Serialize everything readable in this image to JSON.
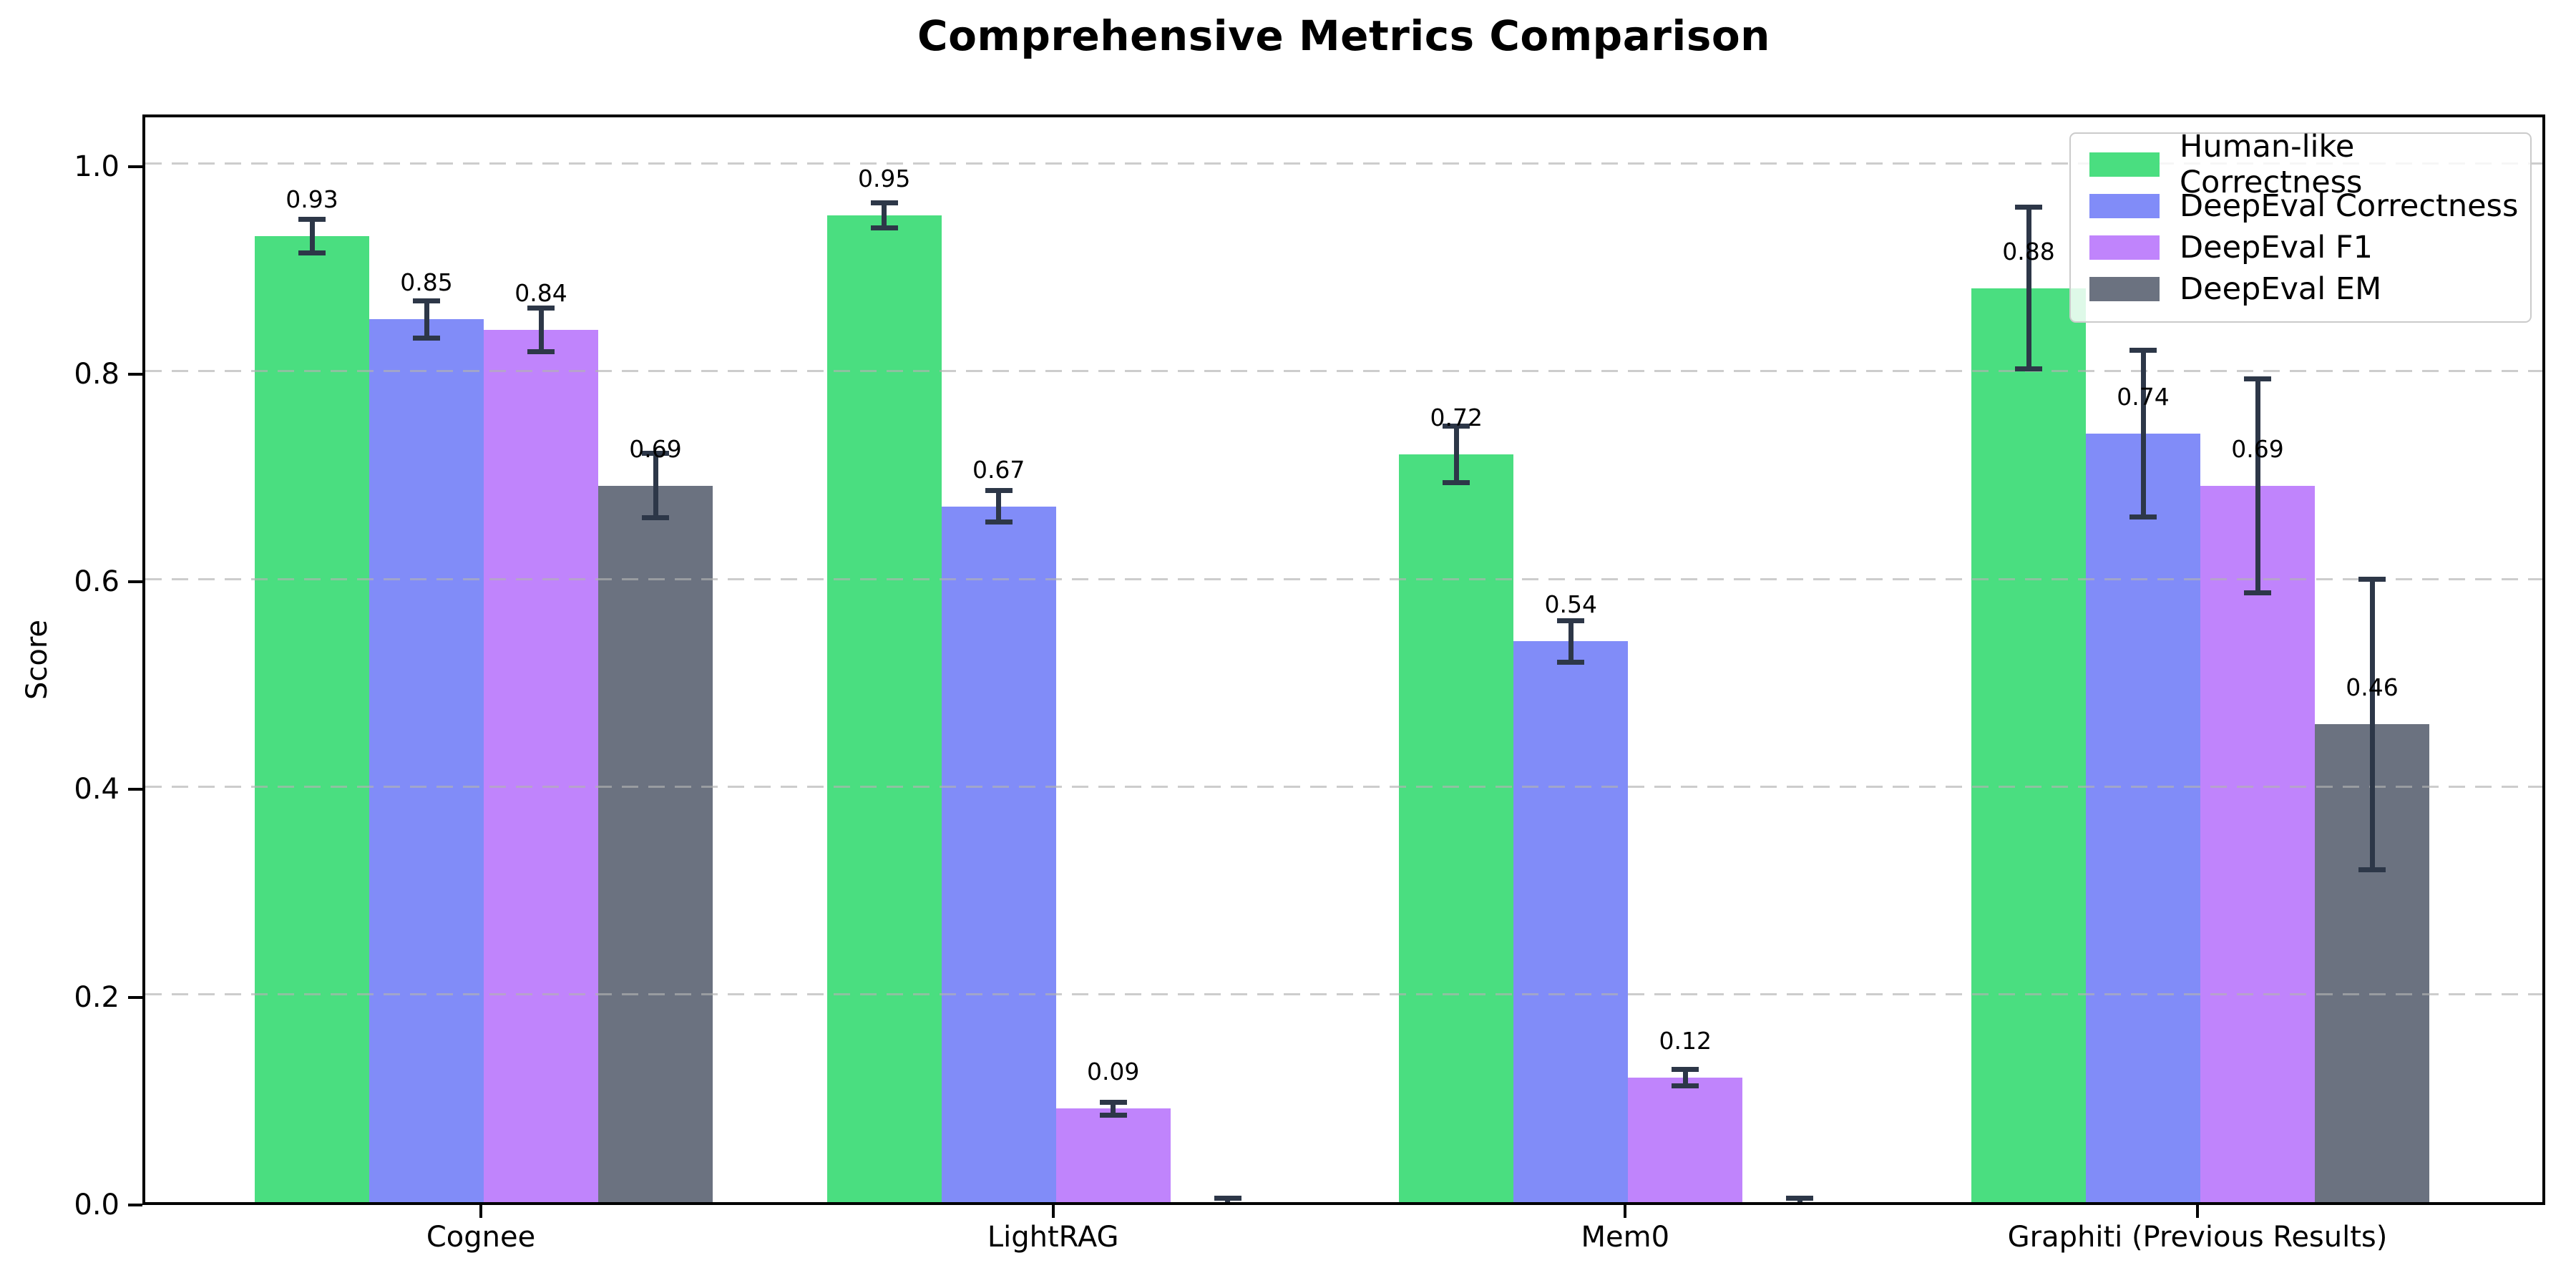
{
  "chart_data": {
    "type": "bar",
    "title": "Comprehensive Metrics Comparison",
    "xlabel": "",
    "ylabel": "Score",
    "ylim": [
      0,
      1.05
    ],
    "yticks": [
      "0.0",
      "0.2",
      "0.4",
      "0.6",
      "0.8",
      "1.0"
    ],
    "grid": "horizontal dashed",
    "grid_color": "#c8c8c8",
    "legend_position": "upper right",
    "error_bar_color": "#2d3748",
    "background_color": "#ffffff",
    "categories": [
      "Cognee",
      "LightRAG",
      "Mem0",
      "Graphiti (Previous Results)"
    ],
    "series": [
      {
        "name": "Human-like Correctness",
        "color": "#4ade80",
        "values": [
          0.93,
          0.95,
          0.72,
          0.88
        ],
        "errors": [
          0.016,
          0.012,
          0.027,
          0.078
        ],
        "labels": [
          "0.93",
          "0.95",
          "0.72",
          "0.88"
        ]
      },
      {
        "name": "DeepEval Correctness",
        "color": "#818cf8",
        "values": [
          0.85,
          0.67,
          0.54,
          0.74
        ],
        "errors": [
          0.018,
          0.015,
          0.02,
          0.08
        ],
        "labels": [
          "0.85",
          "0.67",
          "0.54",
          "0.74"
        ]
      },
      {
        "name": "DeepEval F1",
        "color": "#c084fc",
        "values": [
          0.84,
          0.09,
          0.12,
          0.69
        ],
        "errors": [
          0.021,
          0.006,
          0.008,
          0.103
        ],
        "labels": [
          "0.84",
          "0.09",
          "0.12",
          "0.69"
        ]
      },
      {
        "name": "DeepEval EM",
        "color": "#6b7280",
        "values": [
          0.69,
          0.0,
          0.0,
          0.46
        ],
        "errors": [
          0.031,
          0.004,
          0.004,
          0.14
        ],
        "labels": [
          "0.69",
          null,
          null,
          "0.46"
        ]
      }
    ]
  }
}
